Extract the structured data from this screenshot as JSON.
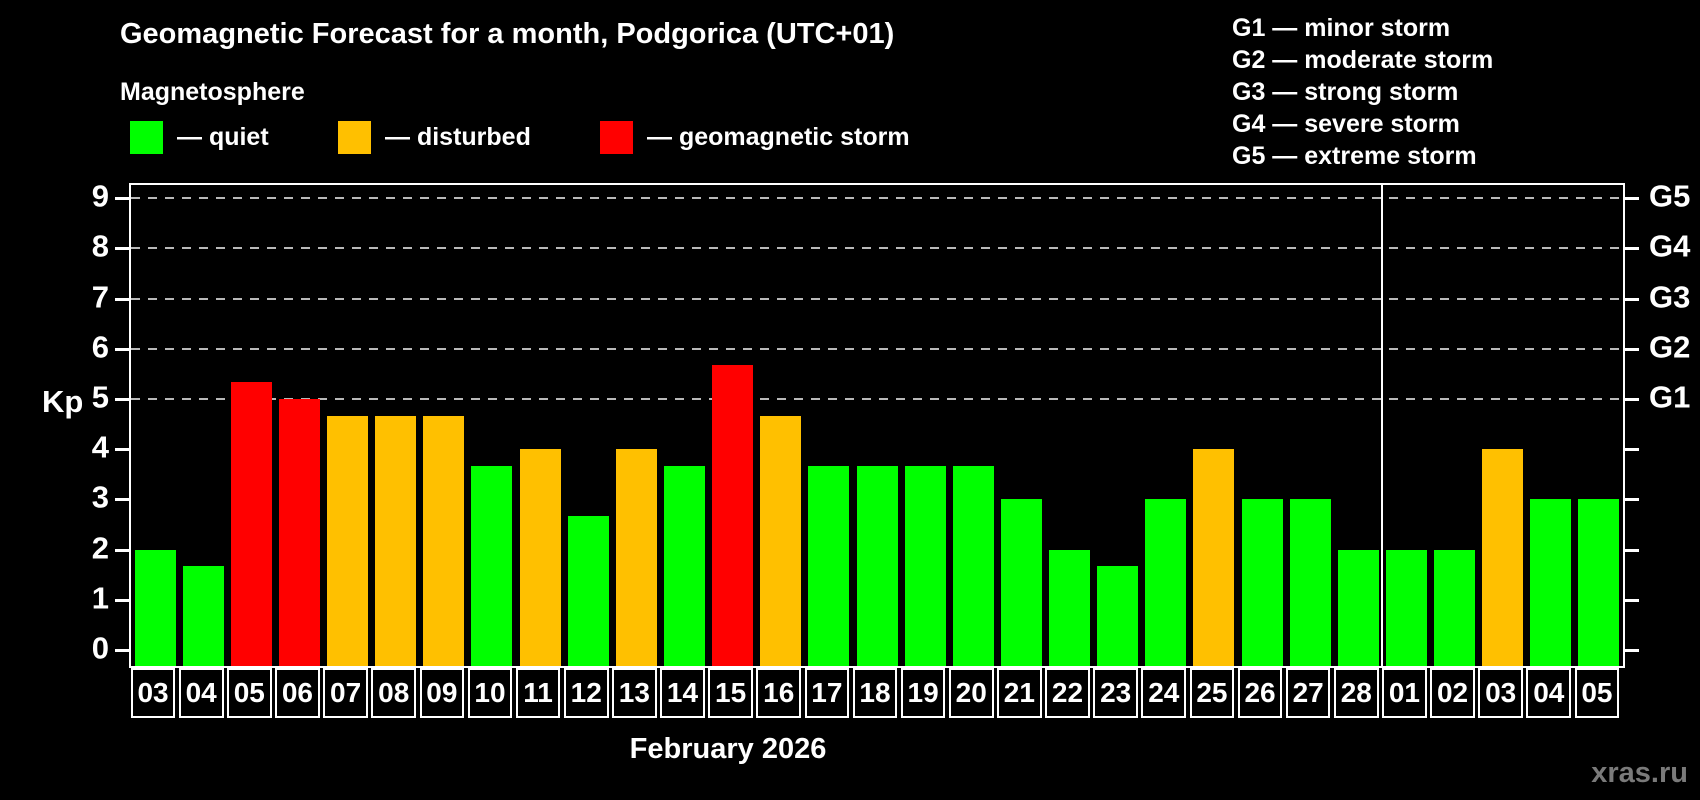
{
  "title": "Geomagnetic Forecast for a month, Podgorica (UTC+01)",
  "subtitle": "Magnetosphere",
  "legend": {
    "quiet": {
      "label": "— quiet",
      "color": "#00ff00"
    },
    "disturbed": {
      "label": "— disturbed",
      "color": "#ffc000"
    },
    "storm": {
      "label": "— geomagnetic storm",
      "color": "#ff0000"
    }
  },
  "g_scale_legend": [
    "G1 — minor storm",
    "G2 — moderate storm",
    "G3 — strong storm",
    "G4 — severe storm",
    "G5 — extreme storm"
  ],
  "y_axis_label": "Kp",
  "month_label": "February 2026",
  "watermark": "xras.ru",
  "chart_data": {
    "type": "bar",
    "title": "Geomagnetic Forecast for a month, Podgorica (UTC+01)",
    "ylabel": "Kp",
    "ylim": [
      0,
      9
    ],
    "grid": "dashed horizontal at Kp 5-9",
    "left_ticks": [
      0,
      1,
      2,
      3,
      4,
      5,
      6,
      7,
      8,
      9
    ],
    "right_labels": [
      {
        "kp": 5,
        "label": "G1"
      },
      {
        "kp": 6,
        "label": "G2"
      },
      {
        "kp": 7,
        "label": "G3"
      },
      {
        "kp": 8,
        "label": "G4"
      },
      {
        "kp": 9,
        "label": "G5"
      }
    ],
    "gridline_kp": [
      5,
      6,
      7,
      8,
      9
    ],
    "month_separator_after_index": 25,
    "bars": [
      {
        "day": "03",
        "kp": 2.0,
        "level": "quiet"
      },
      {
        "day": "04",
        "kp": 1.67,
        "level": "quiet"
      },
      {
        "day": "05",
        "kp": 5.33,
        "level": "storm"
      },
      {
        "day": "06",
        "kp": 5.0,
        "level": "storm"
      },
      {
        "day": "07",
        "kp": 4.67,
        "level": "disturbed"
      },
      {
        "day": "08",
        "kp": 4.67,
        "level": "disturbed"
      },
      {
        "day": "09",
        "kp": 4.67,
        "level": "disturbed"
      },
      {
        "day": "10",
        "kp": 3.67,
        "level": "quiet"
      },
      {
        "day": "11",
        "kp": 4.0,
        "level": "disturbed"
      },
      {
        "day": "12",
        "kp": 2.67,
        "level": "quiet"
      },
      {
        "day": "13",
        "kp": 4.0,
        "level": "disturbed"
      },
      {
        "day": "14",
        "kp": 3.67,
        "level": "quiet"
      },
      {
        "day": "15",
        "kp": 5.67,
        "level": "storm"
      },
      {
        "day": "16",
        "kp": 4.67,
        "level": "disturbed"
      },
      {
        "day": "17",
        "kp": 3.67,
        "level": "quiet"
      },
      {
        "day": "18",
        "kp": 3.67,
        "level": "quiet"
      },
      {
        "day": "19",
        "kp": 3.67,
        "level": "quiet"
      },
      {
        "day": "20",
        "kp": 3.67,
        "level": "quiet"
      },
      {
        "day": "21",
        "kp": 3.0,
        "level": "quiet"
      },
      {
        "day": "22",
        "kp": 2.0,
        "level": "quiet"
      },
      {
        "day": "23",
        "kp": 1.67,
        "level": "quiet"
      },
      {
        "day": "24",
        "kp": 3.0,
        "level": "quiet"
      },
      {
        "day": "25",
        "kp": 4.0,
        "level": "disturbed"
      },
      {
        "day": "26",
        "kp": 3.0,
        "level": "quiet"
      },
      {
        "day": "27",
        "kp": 3.0,
        "level": "quiet"
      },
      {
        "day": "28",
        "kp": 2.0,
        "level": "quiet"
      },
      {
        "day": "01",
        "kp": 2.0,
        "level": "quiet"
      },
      {
        "day": "02",
        "kp": 2.0,
        "level": "quiet"
      },
      {
        "day": "03",
        "kp": 4.0,
        "level": "disturbed"
      },
      {
        "day": "04",
        "kp": 3.0,
        "level": "quiet"
      },
      {
        "day": "05",
        "kp": 3.0,
        "level": "quiet"
      }
    ]
  }
}
